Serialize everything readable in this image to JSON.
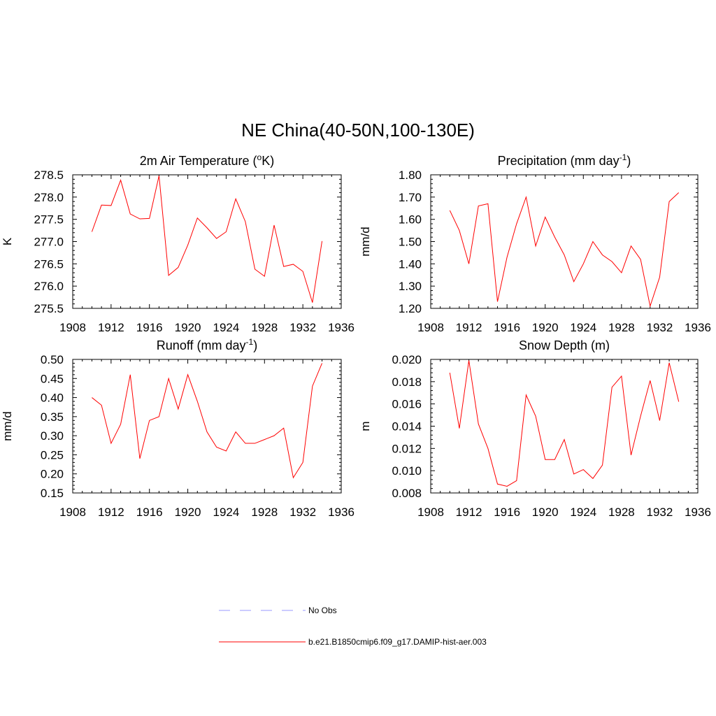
{
  "title": "NE China(40-50N,100-130E)",
  "colors": {
    "model": "#ff0000",
    "obs": "#9999ff",
    "axis": "#000000"
  },
  "legend": {
    "items": [
      {
        "label": "No Obs",
        "style": "dashed",
        "color": "#9999ff"
      },
      {
        "label": "b.e21.B1850cmip6.f09_g17.DAMIP-hist-aer.003",
        "style": "solid",
        "color": "#ff0000"
      }
    ]
  },
  "chart_data": [
    {
      "type": "line",
      "title": "2m Air Temperature (",
      "title_sup": "o",
      "title_tail": "K)",
      "ylabel": "K",
      "xlim": [
        1908,
        1936
      ],
      "ylim": [
        275.5,
        278.5
      ],
      "yticks": [
        "275.5",
        "276.0",
        "276.5",
        "277.0",
        "277.5",
        "278.0",
        "278.5"
      ],
      "xticks": [
        "1908",
        "1912",
        "1916",
        "1920",
        "1924",
        "1928",
        "1932",
        "1936"
      ],
      "x": [
        1910,
        1911,
        1912,
        1913,
        1914,
        1915,
        1916,
        1917,
        1918,
        1919,
        1920,
        1921,
        1922,
        1923,
        1924,
        1925,
        1926,
        1927,
        1928,
        1929,
        1930,
        1931,
        1932,
        1933,
        1934
      ],
      "series": [
        {
          "name": "b.e21.B1850cmip6.f09_g17.DAMIP-hist-aer.003",
          "values": [
            277.22,
            277.82,
            277.81,
            278.38,
            277.62,
            277.51,
            277.52,
            278.48,
            276.24,
            276.42,
            276.92,
            277.53,
            277.31,
            277.07,
            277.22,
            277.96,
            277.45,
            276.38,
            276.22,
            277.37,
            276.44,
            276.49,
            276.33,
            275.63,
            277.01
          ]
        }
      ]
    },
    {
      "type": "line",
      "title": "Precipitation (mm day",
      "title_sup": "-1",
      "title_tail": ")",
      "ylabel": "mm/d",
      "xlim": [
        1908,
        1936
      ],
      "ylim": [
        1.2,
        1.8
      ],
      "yticks": [
        "1.20",
        "1.30",
        "1.40",
        "1.50",
        "1.60",
        "1.70",
        "1.80"
      ],
      "xticks": [
        "1908",
        "1912",
        "1916",
        "1920",
        "1924",
        "1928",
        "1932",
        "1936"
      ],
      "x": [
        1910,
        1911,
        1912,
        1913,
        1914,
        1915,
        1916,
        1917,
        1918,
        1919,
        1920,
        1921,
        1922,
        1923,
        1924,
        1925,
        1926,
        1927,
        1928,
        1929,
        1930,
        1931,
        1932,
        1933,
        1934
      ],
      "series": [
        {
          "name": "b.e21.B1850cmip6.f09_g17.DAMIP-hist-aer.003",
          "values": [
            1.64,
            1.55,
            1.4,
            1.66,
            1.67,
            1.23,
            1.43,
            1.58,
            1.7,
            1.48,
            1.61,
            1.52,
            1.44,
            1.32,
            1.4,
            1.5,
            1.44,
            1.41,
            1.36,
            1.48,
            1.42,
            1.21,
            1.34,
            1.68,
            1.72
          ]
        }
      ]
    },
    {
      "type": "line",
      "title": "Runoff (mm day",
      "title_sup": "-1",
      "title_tail": ")",
      "ylabel": "mm/d",
      "xlim": [
        1908,
        1936
      ],
      "ylim": [
        0.15,
        0.5
      ],
      "yticks": [
        "0.15",
        "0.20",
        "0.25",
        "0.30",
        "0.35",
        "0.40",
        "0.45",
        "0.50"
      ],
      "xticks": [
        "1908",
        "1912",
        "1916",
        "1920",
        "1924",
        "1928",
        "1932",
        "1936"
      ],
      "x": [
        1910,
        1911,
        1912,
        1913,
        1914,
        1915,
        1916,
        1917,
        1918,
        1919,
        1920,
        1921,
        1922,
        1923,
        1924,
        1925,
        1926,
        1927,
        1928,
        1929,
        1930,
        1931,
        1932,
        1933,
        1934
      ],
      "series": [
        {
          "name": "b.e21.B1850cmip6.f09_g17.DAMIP-hist-aer.003",
          "values": [
            0.4,
            0.38,
            0.28,
            0.33,
            0.46,
            0.24,
            0.34,
            0.35,
            0.45,
            0.37,
            0.46,
            0.39,
            0.31,
            0.27,
            0.26,
            0.31,
            0.28,
            0.28,
            0.29,
            0.3,
            0.32,
            0.19,
            0.23,
            0.43,
            0.49
          ]
        }
      ]
    },
    {
      "type": "line",
      "title": "Snow Depth (m)",
      "title_sup": "",
      "title_tail": "",
      "ylabel": "m",
      "xlim": [
        1908,
        1936
      ],
      "ylim": [
        0.008,
        0.02
      ],
      "yticks": [
        "0.008",
        "0.010",
        "0.012",
        "0.014",
        "0.016",
        "0.018",
        "0.020"
      ],
      "xticks": [
        "1908",
        "1912",
        "1916",
        "1920",
        "1924",
        "1928",
        "1932",
        "1936"
      ],
      "x": [
        1910,
        1911,
        1912,
        1913,
        1914,
        1915,
        1916,
        1917,
        1918,
        1919,
        1920,
        1921,
        1922,
        1923,
        1924,
        1925,
        1926,
        1927,
        1928,
        1929,
        1930,
        1931,
        1932,
        1933,
        1934
      ],
      "series": [
        {
          "name": "b.e21.B1850cmip6.f09_g17.DAMIP-hist-aer.003",
          "values": [
            0.0188,
            0.0138,
            0.0199,
            0.0142,
            0.012,
            0.0088,
            0.0086,
            0.0091,
            0.0168,
            0.0149,
            0.011,
            0.011,
            0.0128,
            0.0097,
            0.0101,
            0.0093,
            0.0105,
            0.0175,
            0.0185,
            0.0114,
            0.0149,
            0.0181,
            0.0145,
            0.0197,
            0.0162
          ]
        }
      ]
    }
  ]
}
